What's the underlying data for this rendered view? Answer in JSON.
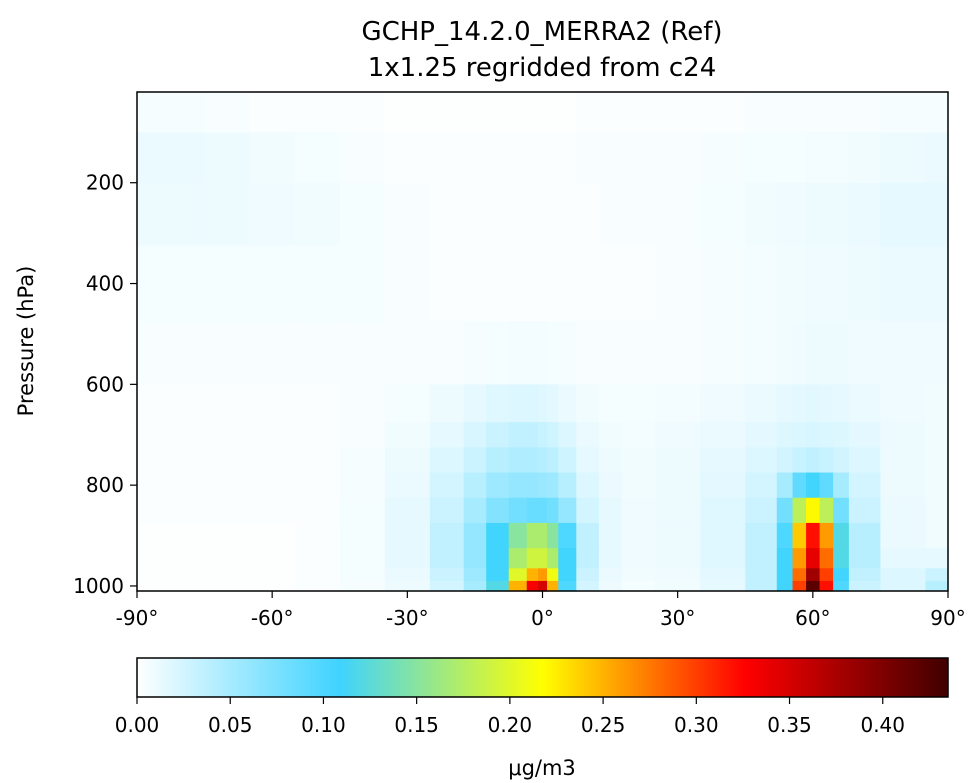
{
  "chart_data": {
    "type": "heatmap",
    "title": "GCHP_14.2.0_MERRA2 (Ref)",
    "subtitle": "1x1.25 regridded from c24",
    "xlabel": "",
    "ylabel": "Pressure (hPa)",
    "x_ticks": [
      {
        "value": -90,
        "label": "-90°"
      },
      {
        "value": -60,
        "label": "-60°"
      },
      {
        "value": -30,
        "label": "-30°"
      },
      {
        "value": 0,
        "label": "0°"
      },
      {
        "value": 30,
        "label": "30°"
      },
      {
        "value": 60,
        "label": "60°"
      },
      {
        "value": 90,
        "label": "90°"
      }
    ],
    "y_ticks": [
      {
        "value": 200,
        "label": "200"
      },
      {
        "value": 400,
        "label": "400"
      },
      {
        "value": 600,
        "label": "600"
      },
      {
        "value": 800,
        "label": "800"
      },
      {
        "value": 1000,
        "label": "1000"
      }
    ],
    "xlim": [
      -90,
      90
    ],
    "ylim": [
      1010,
      20
    ],
    "latitudes": [
      -90,
      -80,
      -70,
      -60,
      -50,
      -40,
      -30,
      -20,
      -15,
      -10,
      -5,
      -2,
      0,
      2,
      5,
      10,
      15,
      20,
      30,
      40,
      50,
      54,
      57,
      60,
      63,
      66,
      70,
      80,
      90
    ],
    "pressure_levels": [
      50,
      150,
      250,
      400,
      550,
      650,
      700,
      750,
      800,
      850,
      900,
      950,
      980,
      1000
    ],
    "values": [
      [
        0.005,
        0.005,
        0.004,
        0.003,
        0.002,
        0.002,
        0.001,
        0.001,
        0.001,
        0.001,
        0.001,
        0.001,
        0.001,
        0.001,
        0.001,
        0.002,
        0.002,
        0.002,
        0.002,
        0.003,
        0.004,
        0.004,
        0.004,
        0.004,
        0.004,
        0.004,
        0.004,
        0.005,
        0.005
      ],
      [
        0.012,
        0.012,
        0.01,
        0.008,
        0.006,
        0.004,
        0.003,
        0.003,
        0.003,
        0.003,
        0.003,
        0.003,
        0.003,
        0.003,
        0.003,
        0.004,
        0.004,
        0.004,
        0.004,
        0.005,
        0.006,
        0.006,
        0.006,
        0.007,
        0.007,
        0.007,
        0.008,
        0.01,
        0.012
      ],
      [
        0.01,
        0.01,
        0.01,
        0.009,
        0.008,
        0.006,
        0.004,
        0.003,
        0.003,
        0.003,
        0.003,
        0.003,
        0.003,
        0.003,
        0.003,
        0.003,
        0.004,
        0.004,
        0.004,
        0.006,
        0.008,
        0.009,
        0.009,
        0.01,
        0.01,
        0.01,
        0.012,
        0.015,
        0.015
      ],
      [
        0.006,
        0.006,
        0.006,
        0.006,
        0.006,
        0.006,
        0.004,
        0.003,
        0.003,
        0.003,
        0.003,
        0.003,
        0.003,
        0.003,
        0.003,
        0.003,
        0.003,
        0.003,
        0.004,
        0.005,
        0.007,
        0.008,
        0.008,
        0.009,
        0.009,
        0.009,
        0.01,
        0.012,
        0.012
      ],
      [
        0.004,
        0.004,
        0.004,
        0.004,
        0.004,
        0.004,
        0.004,
        0.004,
        0.005,
        0.006,
        0.007,
        0.007,
        0.007,
        0.006,
        0.005,
        0.004,
        0.004,
        0.004,
        0.004,
        0.005,
        0.007,
        0.008,
        0.009,
        0.01,
        0.01,
        0.01,
        0.009,
        0.009,
        0.009
      ],
      [
        0.003,
        0.003,
        0.003,
        0.003,
        0.003,
        0.004,
        0.006,
        0.01,
        0.014,
        0.018,
        0.02,
        0.02,
        0.018,
        0.016,
        0.012,
        0.008,
        0.006,
        0.006,
        0.007,
        0.009,
        0.012,
        0.014,
        0.016,
        0.017,
        0.016,
        0.014,
        0.012,
        0.009,
        0.008
      ],
      [
        0.002,
        0.002,
        0.002,
        0.002,
        0.003,
        0.004,
        0.008,
        0.015,
        0.022,
        0.03,
        0.035,
        0.035,
        0.032,
        0.028,
        0.02,
        0.012,
        0.008,
        0.007,
        0.009,
        0.012,
        0.016,
        0.019,
        0.021,
        0.022,
        0.021,
        0.019,
        0.016,
        0.01,
        0.008
      ],
      [
        0.002,
        0.002,
        0.002,
        0.002,
        0.003,
        0.005,
        0.01,
        0.02,
        0.03,
        0.04,
        0.045,
        0.045,
        0.042,
        0.038,
        0.028,
        0.015,
        0.01,
        0.008,
        0.01,
        0.014,
        0.02,
        0.026,
        0.032,
        0.035,
        0.032,
        0.026,
        0.02,
        0.01,
        0.008
      ],
      [
        0.002,
        0.002,
        0.002,
        0.002,
        0.003,
        0.005,
        0.012,
        0.025,
        0.04,
        0.055,
        0.06,
        0.06,
        0.058,
        0.055,
        0.04,
        0.02,
        0.012,
        0.008,
        0.01,
        0.016,
        0.025,
        0.05,
        0.09,
        0.11,
        0.09,
        0.05,
        0.025,
        0.01,
        0.008
      ],
      [
        0.002,
        0.002,
        0.002,
        0.002,
        0.003,
        0.006,
        0.014,
        0.03,
        0.05,
        0.07,
        0.08,
        0.085,
        0.085,
        0.08,
        0.06,
        0.025,
        0.014,
        0.009,
        0.01,
        0.018,
        0.03,
        0.08,
        0.18,
        0.22,
        0.18,
        0.08,
        0.03,
        0.012,
        0.008
      ],
      [
        0.001,
        0.001,
        0.001,
        0.001,
        0.002,
        0.006,
        0.014,
        0.035,
        0.06,
        0.11,
        0.15,
        0.17,
        0.17,
        0.15,
        0.1,
        0.035,
        0.015,
        0.009,
        0.01,
        0.018,
        0.035,
        0.1,
        0.24,
        0.32,
        0.26,
        0.12,
        0.04,
        0.012,
        0.008
      ],
      [
        0.001,
        0.001,
        0.001,
        0.001,
        0.002,
        0.006,
        0.014,
        0.035,
        0.06,
        0.11,
        0.17,
        0.19,
        0.19,
        0.17,
        0.11,
        0.035,
        0.015,
        0.009,
        0.01,
        0.018,
        0.035,
        0.11,
        0.26,
        0.34,
        0.28,
        0.12,
        0.04,
        0.015,
        0.015
      ],
      [
        0.001,
        0.001,
        0.001,
        0.001,
        0.002,
        0.006,
        0.012,
        0.03,
        0.055,
        0.11,
        0.2,
        0.25,
        0.26,
        0.21,
        0.11,
        0.03,
        0.012,
        0.008,
        0.009,
        0.016,
        0.035,
        0.11,
        0.28,
        0.38,
        0.3,
        0.11,
        0.035,
        0.02,
        0.03
      ],
      [
        0.001,
        0.001,
        0.001,
        0.001,
        0.002,
        0.005,
        0.01,
        0.025,
        0.05,
        0.12,
        0.25,
        0.33,
        0.35,
        0.25,
        0.1,
        0.025,
        0.01,
        0.006,
        0.008,
        0.014,
        0.035,
        0.11,
        0.3,
        0.42,
        0.32,
        0.1,
        0.03,
        0.02,
        0.04
      ]
    ],
    "colorbar": {
      "label": "μg/m3",
      "vmin": 0.0,
      "vmax": 0.435,
      "ticks": [
        {
          "value": 0.0,
          "label": "0.00"
        },
        {
          "value": 0.05,
          "label": "0.05"
        },
        {
          "value": 0.1,
          "label": "0.10"
        },
        {
          "value": 0.15,
          "label": "0.15"
        },
        {
          "value": 0.2,
          "label": "0.20"
        },
        {
          "value": 0.25,
          "label": "0.25"
        },
        {
          "value": 0.3,
          "label": "0.30"
        },
        {
          "value": 0.35,
          "label": "0.35"
        },
        {
          "value": 0.4,
          "label": "0.40"
        }
      ],
      "colormap": [
        "#ffffff",
        "#3fd3ff",
        "#ffff00",
        "#ff0000",
        "#400000"
      ]
    }
  }
}
